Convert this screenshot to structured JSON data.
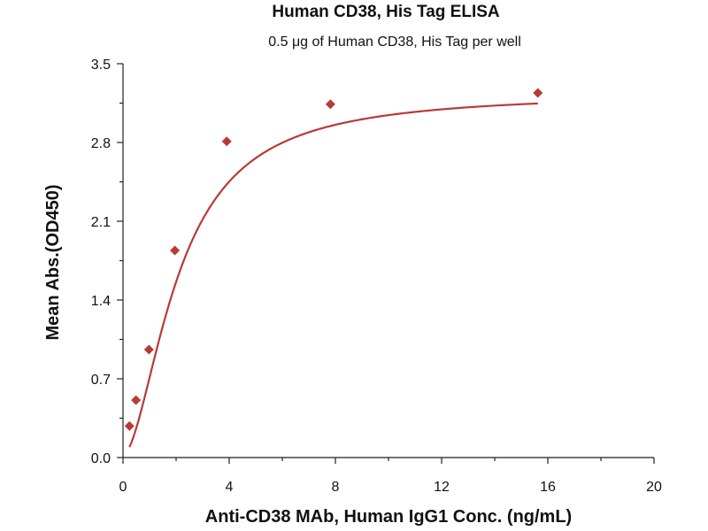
{
  "chart_data": {
    "type": "scatter",
    "title": "Human CD38, His Tag ELISA",
    "subtitle": "0.5 μg of Human CD38, His Tag per well",
    "xlabel": "Anti-CD38 MAb, Human IgG1 Conc. (ng/mL)",
    "ylabel": "Mean Abs.(OD450)",
    "xlim": [
      0,
      20
    ],
    "ylim": [
      0,
      3.5
    ],
    "x_ticks": [
      0,
      4,
      8,
      12,
      16,
      20
    ],
    "x_tick_labels": [
      "0",
      "4",
      "8",
      "12",
      "16",
      "20"
    ],
    "x_minor_ticks": [
      2,
      6,
      10,
      14,
      18
    ],
    "y_ticks": [
      0,
      0.7,
      1.4,
      2.1,
      2.8,
      3.5
    ],
    "y_tick_labels": [
      "0.0",
      "0.7",
      "1.4",
      "2.1",
      "2.8",
      "3.5"
    ],
    "y_minor_ticks": [
      0.35,
      1.05,
      1.75,
      2.45,
      3.15
    ],
    "grid": false,
    "series": [
      {
        "marker": "diamond",
        "x": [
          0.244,
          0.488,
          0.977,
          1.953,
          3.906,
          7.8125,
          15.625
        ],
        "y": [
          0.28,
          0.51,
          0.96,
          1.84,
          2.81,
          3.14,
          3.24
        ]
      }
    ],
    "fit_curve": {
      "type": "four-parameter logistic",
      "bottom": 0.02,
      "top": 3.24,
      "ec50": 2.1,
      "hill": 1.75
    },
    "colors": {
      "series": "#b83a36",
      "axis": "#222222",
      "text": "#111111"
    }
  }
}
